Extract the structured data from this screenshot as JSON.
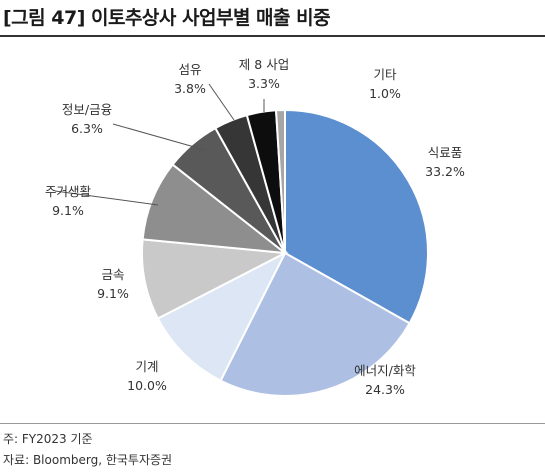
{
  "figure": {
    "title": "[그림 47] 이토추상사 사업부별 매출 비중"
  },
  "notes": {
    "note": "주: FY2023 기준",
    "source": "자료: Bloomberg, 한국투자증권"
  },
  "chart_data": {
    "type": "pie",
    "title": "",
    "slices": [
      {
        "label": "식료품",
        "value": 33.2,
        "value_label": "33.2%",
        "color": "#5b8fd0"
      },
      {
        "label": "에너지/화학",
        "value": 24.3,
        "value_label": "24.3%",
        "color": "#adc0e3"
      },
      {
        "label": "기계",
        "value": 10.0,
        "value_label": "10.0%",
        "color": "#dde6f4"
      },
      {
        "label": "금속",
        "value": 9.1,
        "value_label": "9.1%",
        "color": "#c9c9c9"
      },
      {
        "label": "주거생활",
        "value": 9.1,
        "value_label": "9.1%",
        "color": "#8e8e8e"
      },
      {
        "label": "정보/금융",
        "value": 6.3,
        "value_label": "6.3%",
        "color": "#595959"
      },
      {
        "label": "섬유",
        "value": 3.8,
        "value_label": "3.8%",
        "color": "#363636"
      },
      {
        "label": "제 8 사업",
        "value": 3.3,
        "value_label": "3.3%",
        "color": "#0d0d0d"
      },
      {
        "label": "기타",
        "value": 1.0,
        "value_label": "1.0%",
        "color": "#a6a6a6"
      }
    ],
    "start_angle": "12 o'clock",
    "direction": "clockwise",
    "legend": "none"
  }
}
